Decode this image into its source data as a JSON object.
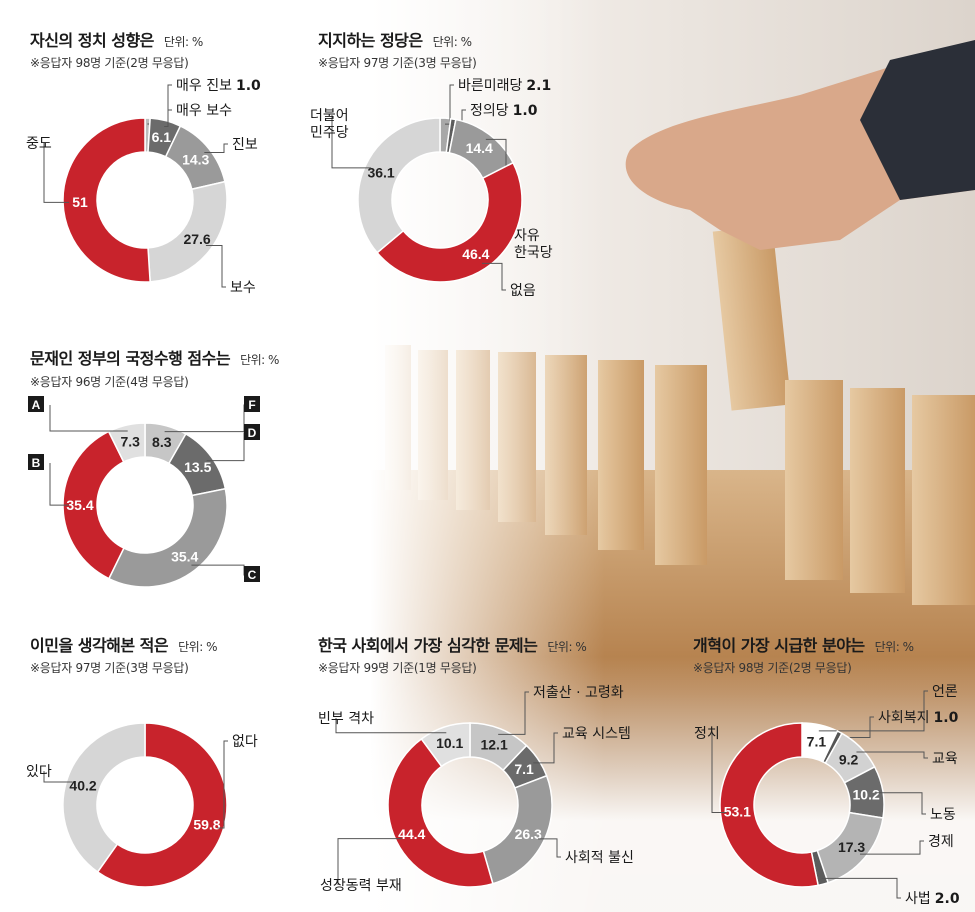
{
  "charts": [
    {
      "title": "자신의 정치 성향은",
      "unit": "단위: %",
      "note": "※응답자 98명 기준(2명 무응답)",
      "chart_data": {
        "type": "donut",
        "slices": [
          {
            "label": "매우 진보",
            "value": 1.0,
            "value_label": "1.0",
            "color": "#bcbcbc"
          },
          {
            "label": "매우 보수",
            "value": 6.1,
            "value_label": "6.1",
            "color": "#6b6b6b"
          },
          {
            "label": "진보",
            "value": 14.3,
            "value_label": "14.3",
            "color": "#9a9a9a"
          },
          {
            "label": "보수",
            "value": 27.6,
            "value_label": "27.6",
            "color": "#d6d6d6"
          },
          {
            "label": "중도",
            "value": 51,
            "value_label": "51",
            "color": "#c8232c"
          }
        ]
      }
    },
    {
      "title": "지지하는 정당은",
      "unit": "단위: %",
      "note": "※응답자 97명 기준(3명 무응답)",
      "chart_data": {
        "type": "donut",
        "slices": [
          {
            "label": "바른미래당",
            "value": 2.1,
            "value_label": "2.1",
            "color": "#a8a8a8"
          },
          {
            "label": "정의당",
            "value": 1.0,
            "value_label": "1.0",
            "color": "#5c5c5c"
          },
          {
            "label": "자유한국당",
            "value": 14.4,
            "value_label": "14.4",
            "color": "#9a9a9a"
          },
          {
            "label": "없음",
            "value": 46.4,
            "value_label": "46.4",
            "color": "#c8232c"
          },
          {
            "label": "더불어민주당",
            "value": 36.1,
            "value_label": "36.1",
            "color": "#d6d6d6"
          }
        ]
      }
    },
    {
      "title": "문재인 정부의 국정수행 점수는",
      "unit": "단위: %",
      "note": "※응답자 96명 기준(4명 무응답)",
      "chart_data": {
        "type": "donut",
        "slices": [
          {
            "label": "F",
            "value": 8.3,
            "value_label": "8.3",
            "color": "#c6c6c6"
          },
          {
            "label": "D",
            "value": 13.5,
            "value_label": "13.5",
            "color": "#6b6b6b"
          },
          {
            "label": "C",
            "value": 35.4,
            "value_label": "35.4",
            "color": "#9a9a9a"
          },
          {
            "label": "B",
            "value": 35.4,
            "value_label": "35.4",
            "color": "#c8232c"
          },
          {
            "label": "A",
            "value": 7.3,
            "value_label": "7.3",
            "color": "#e0e0e0"
          }
        ]
      }
    },
    {
      "title": "이민을 생각해본 적은",
      "unit": "단위: %",
      "note": "※응답자 97명 기준(3명 무응답)",
      "chart_data": {
        "type": "donut",
        "slices": [
          {
            "label": "없다",
            "value": 59.8,
            "value_label": "59.8",
            "color": "#c8232c"
          },
          {
            "label": "있다",
            "value": 40.2,
            "value_label": "40.2",
            "color": "#d6d6d6"
          }
        ]
      }
    },
    {
      "title": "한국 사회에서 가장 심각한 문제는",
      "unit": "단위: %",
      "note": "※응답자 99명 기준(1명 무응답)",
      "chart_data": {
        "type": "donut",
        "slices": [
          {
            "label": "저출산 · 고령화",
            "value": 12.1,
            "value_label": "12.1",
            "color": "#c6c6c6"
          },
          {
            "label": "교육 시스템",
            "value": 7.1,
            "value_label": "7.1",
            "color": "#6b6b6b"
          },
          {
            "label": "사회적 불신",
            "value": 26.3,
            "value_label": "26.3",
            "color": "#9a9a9a"
          },
          {
            "label": "성장동력 부재",
            "value": 44.4,
            "value_label": "44.4",
            "color": "#c8232c"
          },
          {
            "label": "빈부 격차",
            "value": 10.1,
            "value_label": "10.1",
            "color": "#e0e0e0"
          }
        ]
      }
    },
    {
      "title": "개혁이 가장 시급한 분야는",
      "unit": "단위: %",
      "note": "※응답자 98명 기준(2명 무응답)",
      "chart_data": {
        "type": "donut",
        "slices": [
          {
            "label": "언론",
            "value": 7.1,
            "value_label": "7.1",
            "color": "#ffffff"
          },
          {
            "label": "사회복지",
            "value": 1.0,
            "value_label": "1.0",
            "color": "#555555"
          },
          {
            "label": "교육",
            "value": 9.2,
            "value_label": "9.2",
            "color": "#d2d2d2"
          },
          {
            "label": "노동",
            "value": 10.2,
            "value_label": "10.2",
            "color": "#6b6b6b"
          },
          {
            "label": "경제",
            "value": 17.3,
            "value_label": "17.3",
            "color": "#b4b4b4"
          },
          {
            "label": "사법",
            "value": 2.0,
            "value_label": "2.0",
            "color": "#5c5c5c"
          },
          {
            "label": "정치",
            "value": 53.1,
            "value_label": "53.1",
            "color": "#c8232c"
          }
        ]
      }
    }
  ]
}
